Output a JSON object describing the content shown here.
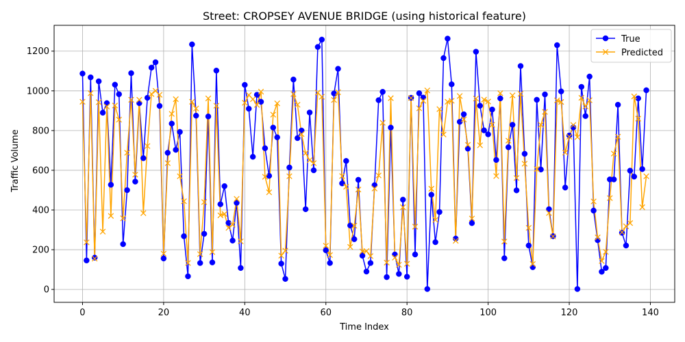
{
  "chart_data": {
    "type": "line",
    "title": "Street: CROPSEY AVENUE BRIDGE (using historical feature)",
    "xlabel": "Time Index",
    "ylabel": "Traffic Volume",
    "xlim": [
      -7,
      146
    ],
    "ylim": [
      -65,
      1330
    ],
    "xticks": [
      0,
      20,
      40,
      60,
      80,
      100,
      120,
      140
    ],
    "yticks": [
      0,
      200,
      400,
      600,
      800,
      1000,
      1200
    ],
    "grid": true,
    "legend_position": "top-right",
    "series": [
      {
        "name": "True",
        "color": "#0000ff",
        "marker": "circle",
        "values": [
          1087,
          146,
          1068,
          160,
          1048,
          890,
          938,
          527,
          1031,
          983,
          228,
          500,
          1089,
          543,
          938,
          661,
          965,
          1117,
          1144,
          924,
          156,
          688,
          835,
          703,
          793,
          268,
          66,
          1234,
          875,
          133,
          280,
          871,
          136,
          1102,
          429,
          520,
          335,
          246,
          436,
          108,
          1030,
          910,
          668,
          980,
          945,
          711,
          572,
          815,
          766,
          130,
          53,
          614,
          1057,
          762,
          800,
          404,
          891,
          600,
          1221,
          1258,
          197,
          133,
          987,
          1111,
          534,
          647,
          322,
          253,
          552,
          170,
          90,
          133,
          525,
          953,
          995,
          62,
          815,
          176,
          78,
          452,
          64,
          965,
          176,
          988,
          966,
          2,
          477,
          238,
          390,
          1165,
          1263,
          1033,
          256,
          844,
          882,
          709,
          334,
          1197,
          925,
          801,
          781,
          906,
          652,
          962,
          157,
          716,
          829,
          499,
          1125,
          683,
          221,
          112,
          955,
          604,
          982,
          404,
          268,
          1230,
          997,
          513,
          775,
          816,
          2,
          1020,
          873,
          1072,
          397,
          248,
          89,
          108,
          554,
          554,
          930,
          285,
          221,
          598,
          568,
          962,
          606,
          1003
        ]
      },
      {
        "name": "Predicted",
        "color": "#ffa500",
        "marker": "x",
        "values": [
          945,
          237,
          988,
          155,
          943,
          291,
          921,
          370,
          926,
          855,
          358,
          688,
          955,
          578,
          955,
          384,
          722,
          984,
          1000,
          980,
          180,
          636,
          884,
          958,
          570,
          444,
          133,
          945,
          911,
          178,
          440,
          962,
          188,
          925,
          373,
          380,
          310,
          326,
          456,
          242,
          940,
          979,
          958,
          929,
          996,
          567,
          489,
          880,
          937,
          170,
          195,
          570,
          984,
          930,
          782,
          686,
          651,
          636,
          991,
          970,
          220,
          173,
          954,
          993,
          571,
          517,
          214,
          321,
          503,
          191,
          193,
          168,
          508,
          574,
          839,
          135,
          963,
          160,
          124,
          414,
          129,
          964,
          316,
          912,
          950,
          1002,
          507,
          350,
          908,
          780,
          945,
          950,
          245,
          974,
          856,
          728,
          357,
          961,
          726,
          956,
          946,
          829,
          571,
          988,
          241,
          749,
          977,
          561,
          985,
          633,
          310,
          128,
          606,
          829,
          894,
          385,
          267,
          952,
          944,
          689,
          769,
          828,
          767,
          965,
          922,
          953,
          443,
          262,
          143,
          189,
          460,
          684,
          769,
          288,
          318,
          334,
          972,
          860,
          414,
          570
        ]
      }
    ]
  }
}
